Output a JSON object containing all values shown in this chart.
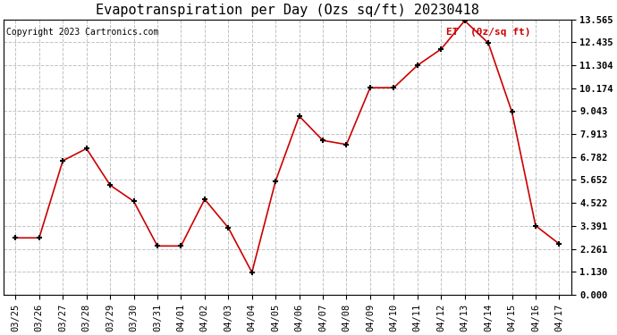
{
  "title": "Evapotranspiration per Day (Ozs sq/ft) 20230418",
  "copyright": "Copyright 2023 Cartronics.com",
  "legend_label": "ET  (0z/sq ft)",
  "dates": [
    "03/25",
    "03/26",
    "03/27",
    "03/28",
    "03/29",
    "03/30",
    "03/31",
    "04/01",
    "04/02",
    "04/03",
    "04/04",
    "04/05",
    "04/06",
    "04/07",
    "04/08",
    "04/09",
    "04/10",
    "04/11",
    "04/12",
    "04/13",
    "04/14",
    "04/15",
    "04/16",
    "04/17"
  ],
  "values": [
    2.8,
    2.8,
    6.6,
    7.2,
    5.4,
    4.6,
    2.4,
    2.4,
    4.7,
    3.3,
    1.1,
    5.6,
    8.8,
    7.6,
    7.4,
    10.2,
    10.2,
    11.3,
    12.1,
    13.5,
    12.4,
    9.0,
    3.4,
    2.5
  ],
  "yticks": [
    0.0,
    1.13,
    2.261,
    3.391,
    4.522,
    5.652,
    6.782,
    7.913,
    9.043,
    10.174,
    11.304,
    12.435,
    13.565
  ],
  "ylim": [
    0.0,
    13.565
  ],
  "line_color": "#cc0000",
  "marker_color": "#000000",
  "grid_color": "#bbbbbb",
  "background_color": "#ffffff",
  "title_fontsize": 11,
  "copyright_fontsize": 7,
  "legend_color": "#cc0000",
  "tick_fontsize": 7.5,
  "border_color": "#000000"
}
